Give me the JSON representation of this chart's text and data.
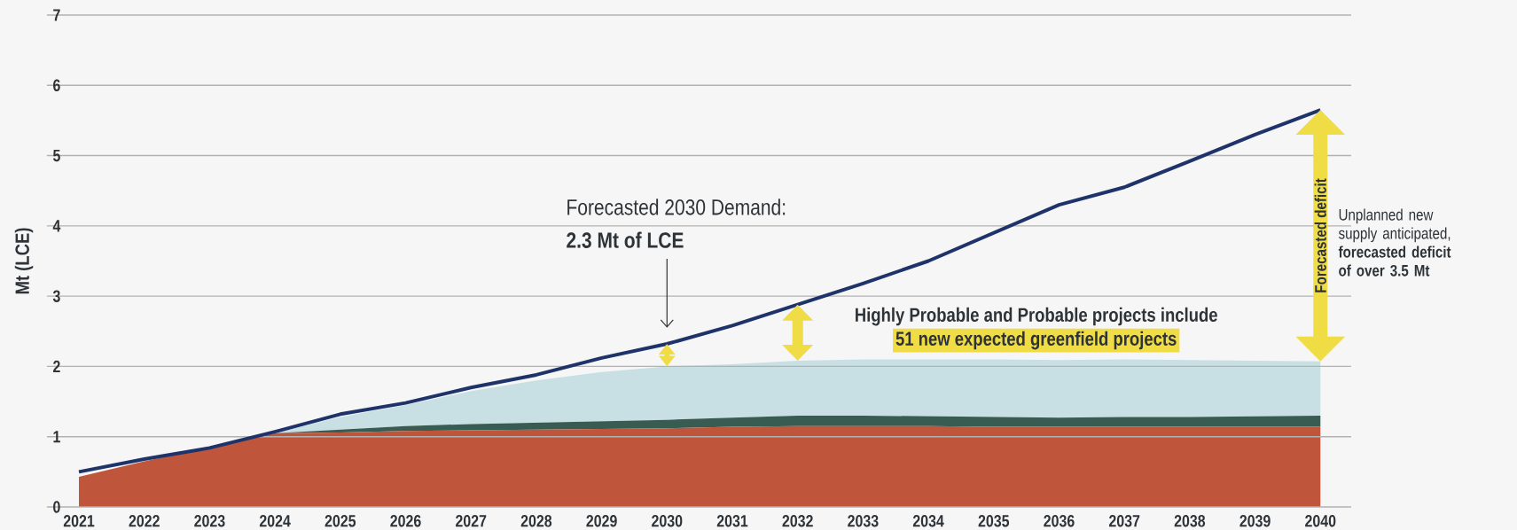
{
  "chart_data": {
    "type": "area",
    "stacked": true,
    "ylabel": "Mt (LCE)",
    "categories": [
      "2021",
      "2022",
      "2023",
      "2024",
      "2025",
      "2026",
      "2027",
      "2028",
      "2029",
      "2030",
      "2031",
      "2032",
      "2033",
      "2034",
      "2035",
      "2036",
      "2037",
      "2038",
      "2039",
      "2040"
    ],
    "ylim": [
      0,
      7
    ],
    "yticks": [
      0,
      1,
      2,
      3,
      4,
      5,
      6,
      7
    ],
    "grid": "y",
    "series": [
      {
        "color": "#bf563b",
        "values": [
          0.43,
          0.65,
          0.85,
          1.05,
          1.06,
          1.08,
          1.09,
          1.1,
          1.11,
          1.12,
          1.14,
          1.15,
          1.15,
          1.15,
          1.14,
          1.14,
          1.14,
          1.14,
          1.14,
          1.14
        ]
      },
      {
        "color": "#385c52",
        "values": [
          0,
          0,
          0,
          0,
          0.04,
          0.07,
          0.09,
          0.1,
          0.11,
          0.12,
          0.13,
          0.15,
          0.15,
          0.14,
          0.14,
          0.13,
          0.14,
          0.14,
          0.15,
          0.16
        ]
      },
      {
        "color": "#c8dfe3",
        "values": [
          0,
          0,
          0,
          0,
          0.18,
          0.3,
          0.47,
          0.6,
          0.7,
          0.76,
          0.76,
          0.78,
          0.8,
          0.81,
          0.82,
          0.82,
          0.82,
          0.81,
          0.79,
          0.77
        ]
      },
      {
        "type": "line",
        "color": "#1f336b",
        "values": [
          0.5,
          0.68,
          0.84,
          1.07,
          1.32,
          1.48,
          1.7,
          1.88,
          2.12,
          2.32,
          2.58,
          2.88,
          3.18,
          3.5,
          3.9,
          4.3,
          4.55,
          4.92,
          5.3,
          5.65
        ]
      }
    ],
    "annotations": [
      "Forecasted 2030 Demand:",
      "2.3 Mt of LCE",
      "Highly Probable and Probable projects include",
      "51 new expected greenfield projects",
      "Forecasted deficit",
      "Unplanned new supply anticipated, **forecasted deficit of over 3.5 Mt**"
    ]
  }
}
